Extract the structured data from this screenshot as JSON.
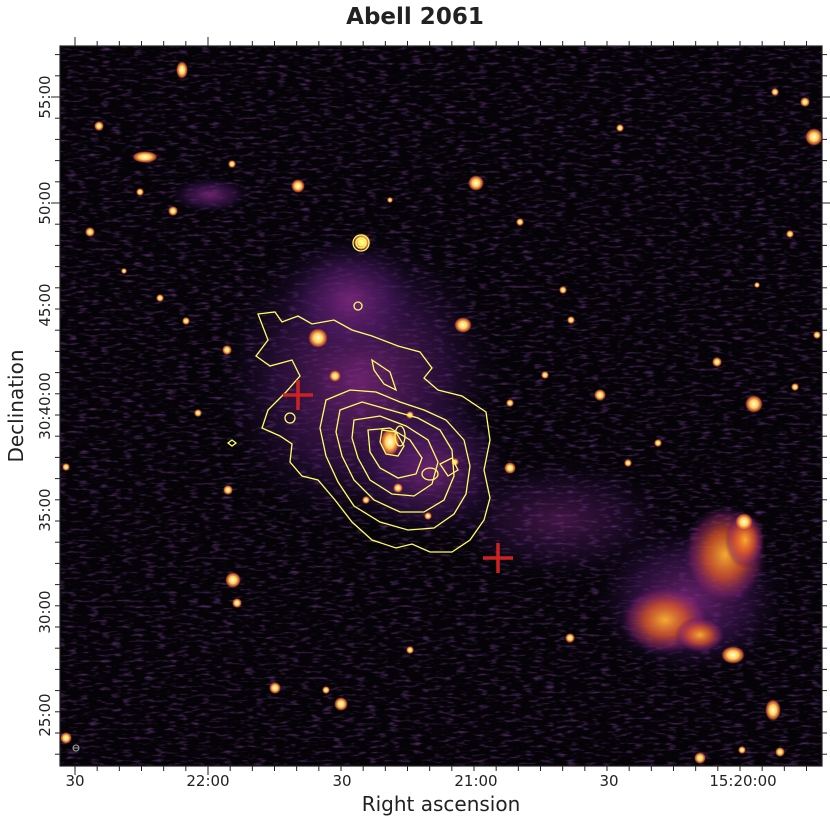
{
  "figure": {
    "title": "Abell 2061",
    "xlabel": "Right ascension",
    "ylabel": "Declination",
    "colormap": "inferno",
    "contour_color": "#ffff66",
    "marker_color": "#cc2222"
  },
  "x_ticks": [
    {
      "label": "30"
    },
    {
      "label": "22:00"
    },
    {
      "label": "30"
    },
    {
      "label": "21:00"
    },
    {
      "label": "30"
    },
    {
      "label": "15:20:00"
    }
  ],
  "y_ticks": [
    {
      "label": "55:00"
    },
    {
      "label": "50:00"
    },
    {
      "label": "45:00"
    },
    {
      "label": "30:40:00"
    },
    {
      "label": "35:00"
    },
    {
      "label": "30:00"
    },
    {
      "label": "25:00"
    }
  ],
  "markers": [
    {
      "name": "cross-marker-northeast",
      "type": "plus"
    },
    {
      "name": "cross-marker-southwest",
      "type": "plus"
    }
  ]
}
